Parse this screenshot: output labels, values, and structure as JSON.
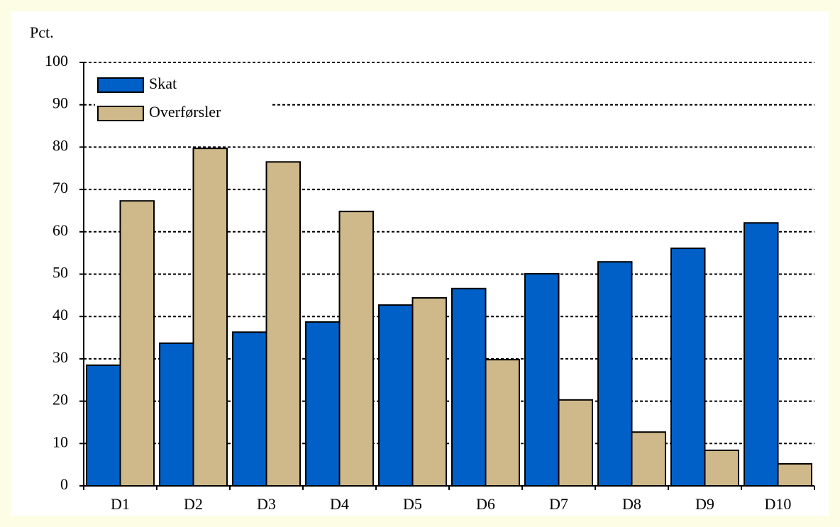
{
  "chart_data": {
    "type": "bar",
    "ylabel": "Pct.",
    "categories": [
      "D1",
      "D2",
      "D3",
      "D4",
      "D5",
      "D6",
      "D7",
      "D8",
      "D9",
      "D10"
    ],
    "series": [
      {
        "name": "Skat",
        "color": "#0060c8",
        "values": [
          28.5,
          33.7,
          36.3,
          38.7,
          42.7,
          46.6,
          50.1,
          52.9,
          56.1,
          62.1
        ]
      },
      {
        "name": "Overførsler",
        "color": "#cfb98a",
        "values": [
          67.3,
          79.7,
          76.5,
          64.8,
          44.4,
          29.8,
          20.3,
          12.7,
          8.4,
          5.2
        ]
      }
    ],
    "ylim": [
      0,
      100
    ],
    "yticks": [
      0,
      10,
      20,
      30,
      40,
      50,
      60,
      70,
      80,
      90,
      100
    ],
    "grid": true,
    "legend": "upper left"
  }
}
